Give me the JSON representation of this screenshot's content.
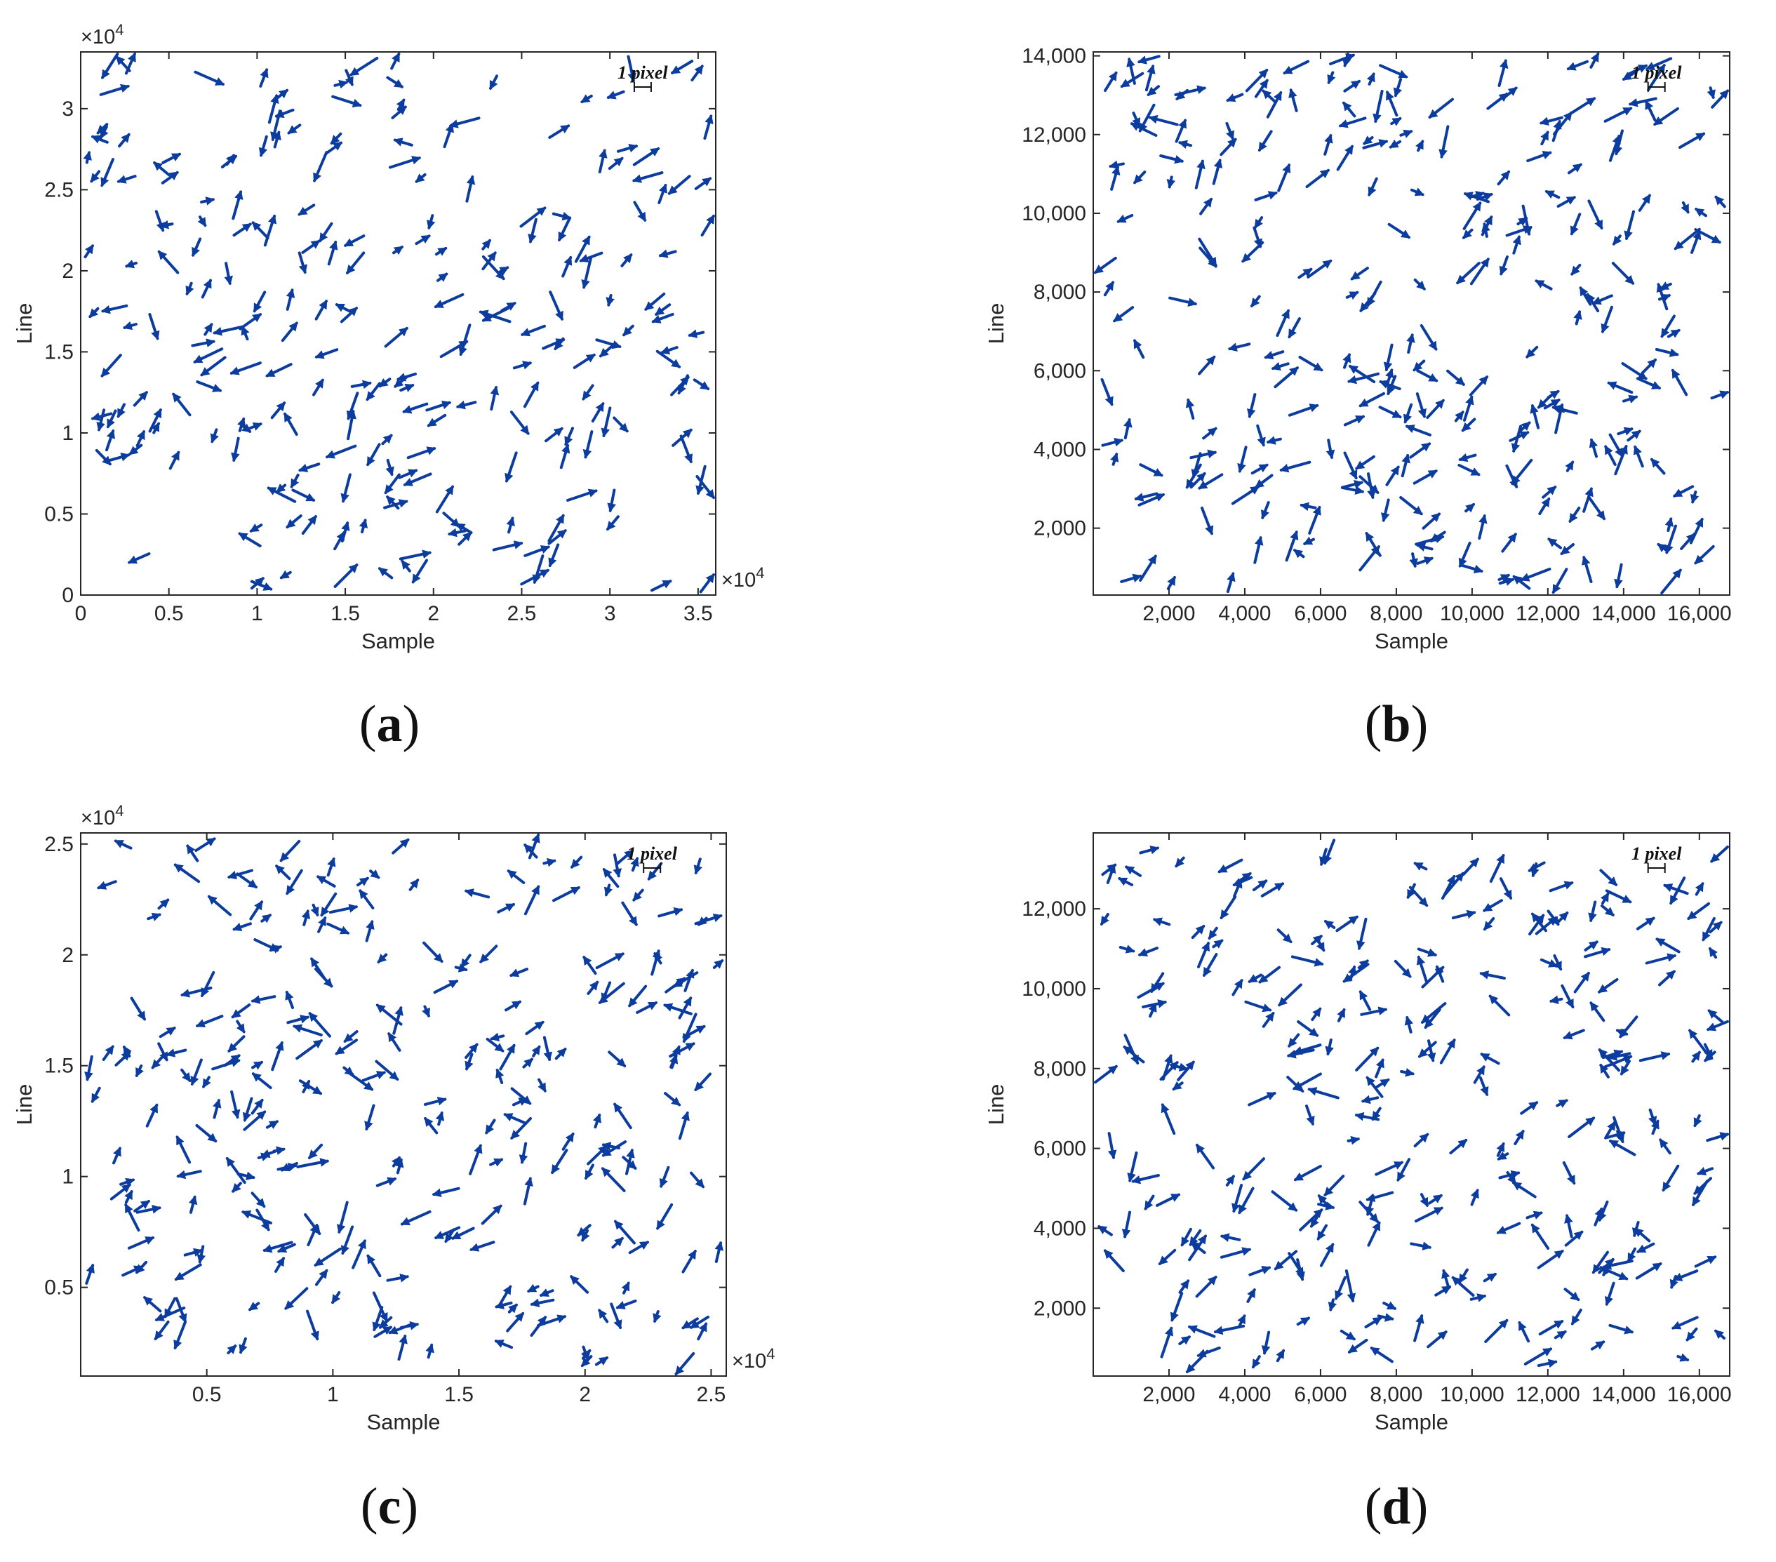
{
  "figure": {
    "arrow_color": "#0c3d9e",
    "panels": [
      {
        "id": "a",
        "caption_letter": "a",
        "xlabel": "Sample",
        "ylabel": "Line",
        "x_multiplier_label": "×10",
        "x_multiplier_exp": "4",
        "y_multiplier_label": "×10",
        "y_multiplier_exp": "4",
        "scale_label": "1 pixel",
        "xlim": [
          0,
          36000
        ],
        "ylim": [
          0,
          33500
        ],
        "x_ticks": [
          0,
          5000,
          10000,
          15000,
          20000,
          25000,
          30000,
          35000
        ],
        "x_tick_labels": [
          "0",
          "0.5",
          "1",
          "1.5",
          "2",
          "2.5",
          "3",
          "3.5"
        ],
        "y_ticks": [
          0,
          5000,
          10000,
          15000,
          20000,
          25000,
          30000
        ],
        "y_tick_labels": [
          "0",
          "0.5",
          "1",
          "1.5",
          "2",
          "2.5",
          "3"
        ],
        "seed": 11,
        "n_arrows": 250
      },
      {
        "id": "b",
        "caption_letter": "b",
        "xlabel": "Sample",
        "ylabel": "Line",
        "x_multiplier_label": "",
        "x_multiplier_exp": "",
        "y_multiplier_label": "",
        "y_multiplier_exp": "",
        "scale_label": "1 pixel",
        "xlim": [
          0,
          16800
        ],
        "ylim": [
          300,
          14100
        ],
        "x_ticks": [
          2000,
          4000,
          6000,
          8000,
          10000,
          12000,
          14000,
          16000
        ],
        "x_tick_labels": [
          "2,000",
          "4,000",
          "6,000",
          "8,000",
          "10,000",
          "12,000",
          "14,000",
          "16,000"
        ],
        "y_ticks": [
          2000,
          4000,
          6000,
          8000,
          10000,
          12000,
          14000
        ],
        "y_tick_labels": [
          "2,000",
          "4,000",
          "6,000",
          "8,000",
          "10,000",
          "12,000",
          "14,000"
        ],
        "seed": 23,
        "n_arrows": 290
      },
      {
        "id": "c",
        "caption_letter": "c",
        "xlabel": "Sample",
        "ylabel": "Line",
        "x_multiplier_label": "×10",
        "x_multiplier_exp": "4",
        "y_multiplier_label": "×10",
        "y_multiplier_exp": "4",
        "scale_label": "1 pixel",
        "xlim": [
          0,
          25600
        ],
        "ylim": [
          1000,
          25500
        ],
        "x_ticks": [
          5000,
          10000,
          15000,
          20000,
          25000
        ],
        "x_tick_labels": [
          "0.5",
          "1",
          "1.5",
          "2",
          "2.5"
        ],
        "y_ticks": [
          5000,
          10000,
          15000,
          20000,
          25000
        ],
        "y_tick_labels": [
          "0.5",
          "1",
          "1.5",
          "2",
          "2.5"
        ],
        "seed": 37,
        "n_arrows": 280
      },
      {
        "id": "d",
        "caption_letter": "d",
        "xlabel": "Sample",
        "ylabel": "Line",
        "x_multiplier_label": "",
        "x_multiplier_exp": "",
        "y_multiplier_label": "",
        "y_multiplier_exp": "",
        "scale_label": "1 pixel",
        "xlim": [
          0,
          16800
        ],
        "ylim": [
          300,
          13900
        ],
        "x_ticks": [
          2000,
          4000,
          6000,
          8000,
          10000,
          12000,
          14000,
          16000
        ],
        "x_tick_labels": [
          "2,000",
          "4,000",
          "6,000",
          "8,000",
          "10,000",
          "12,000",
          "14,000",
          "16,000"
        ],
        "y_ticks": [
          2000,
          4000,
          6000,
          8000,
          10000,
          12000
        ],
        "y_tick_labels": [
          "2,000",
          "4,000",
          "6,000",
          "8,000",
          "10,000",
          "12,000"
        ],
        "seed": 53,
        "n_arrows": 290
      }
    ]
  },
  "chart_data": [
    {
      "type": "scatter",
      "description": "Quiver plot of displacement vectors",
      "xlabel": "Sample",
      "ylabel": "Line",
      "xlim": [
        0,
        36000
      ],
      "ylim": [
        0,
        33500
      ],
      "grid": false,
      "legend": "none"
    },
    {
      "type": "scatter",
      "description": "Quiver plot of displacement vectors",
      "xlabel": "Sample",
      "ylabel": "Line",
      "xlim": [
        0,
        16800
      ],
      "ylim": [
        300,
        14100
      ],
      "grid": false,
      "legend": "none"
    },
    {
      "type": "scatter",
      "description": "Quiver plot of displacement vectors",
      "xlabel": "Sample",
      "ylabel": "Line",
      "xlim": [
        0,
        25600
      ],
      "ylim": [
        1000,
        25500
      ],
      "grid": false,
      "legend": "none"
    },
    {
      "type": "scatter",
      "description": "Quiver plot of displacement vectors",
      "xlabel": "Sample",
      "ylabel": "Line",
      "xlim": [
        0,
        16800
      ],
      "ylim": [
        300,
        13900
      ],
      "grid": false,
      "legend": "none"
    }
  ]
}
